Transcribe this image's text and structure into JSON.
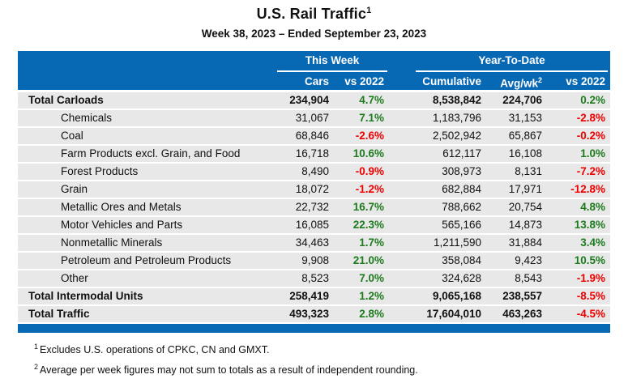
{
  "page": {
    "title": "U.S. Rail Traffic",
    "title_superscript": "1",
    "subtitle": "Week 38, 2023 – Ended September 23, 2023"
  },
  "colors": {
    "header_blue": "#0768B4",
    "row_gray": "#E8E8E8",
    "positive_green": "#1D7B1D",
    "negative_red": "#EE0000"
  },
  "chart_data": {
    "type": "table",
    "title": "U.S. Rail Traffic",
    "subtitle": "Week 38, 2023 – Ended September 23, 2023",
    "group_headers": [
      {
        "label": "This Week",
        "columns": [
          "Cars",
          "vs 2022"
        ]
      },
      {
        "label": "Year-To-Date",
        "columns": [
          "Cumulative",
          "Avg/wk",
          "vs 2022"
        ]
      }
    ],
    "avgwk_superscript": "2",
    "rows": [
      {
        "label": "Total Carloads",
        "total": true,
        "cars": "234,904",
        "week_vs_2022": "4.7%",
        "cumulative": "8,538,842",
        "avg_per_week": "224,706",
        "ytd_vs_2022": "0.2%"
      },
      {
        "label": "Chemicals",
        "total": false,
        "cars": "31,067",
        "week_vs_2022": "7.1%",
        "cumulative": "1,183,796",
        "avg_per_week": "31,153",
        "ytd_vs_2022": "-2.8%"
      },
      {
        "label": "Coal",
        "total": false,
        "cars": "68,846",
        "week_vs_2022": "-2.6%",
        "cumulative": "2,502,942",
        "avg_per_week": "65,867",
        "ytd_vs_2022": "-0.2%"
      },
      {
        "label": "Farm Products excl. Grain, and Food",
        "total": false,
        "cars": "16,718",
        "week_vs_2022": "10.6%",
        "cumulative": "612,117",
        "avg_per_week": "16,108",
        "ytd_vs_2022": "1.0%"
      },
      {
        "label": "Forest Products",
        "total": false,
        "cars": "8,490",
        "week_vs_2022": "-0.9%",
        "cumulative": "308,973",
        "avg_per_week": "8,131",
        "ytd_vs_2022": "-7.2%"
      },
      {
        "label": "Grain",
        "total": false,
        "cars": "18,072",
        "week_vs_2022": "-1.2%",
        "cumulative": "682,884",
        "avg_per_week": "17,971",
        "ytd_vs_2022": "-12.8%"
      },
      {
        "label": "Metallic Ores and Metals",
        "total": false,
        "cars": "22,732",
        "week_vs_2022": "16.7%",
        "cumulative": "788,662",
        "avg_per_week": "20,754",
        "ytd_vs_2022": "4.8%"
      },
      {
        "label": "Motor Vehicles and Parts",
        "total": false,
        "cars": "16,085",
        "week_vs_2022": "22.3%",
        "cumulative": "565,166",
        "avg_per_week": "14,873",
        "ytd_vs_2022": "13.8%"
      },
      {
        "label": "Nonmetallic Minerals",
        "total": false,
        "cars": "34,463",
        "week_vs_2022": "1.7%",
        "cumulative": "1,211,590",
        "avg_per_week": "31,884",
        "ytd_vs_2022": "3.4%"
      },
      {
        "label": "Petroleum and Petroleum Products",
        "total": false,
        "cars": "9,908",
        "week_vs_2022": "21.0%",
        "cumulative": "358,084",
        "avg_per_week": "9,423",
        "ytd_vs_2022": "10.5%"
      },
      {
        "label": "Other",
        "total": false,
        "cars": "8,523",
        "week_vs_2022": "7.0%",
        "cumulative": "324,628",
        "avg_per_week": "8,543",
        "ytd_vs_2022": "-1.9%"
      },
      {
        "label": "Total Intermodal Units",
        "total": true,
        "cars": "258,419",
        "week_vs_2022": "1.2%",
        "cumulative": "9,065,168",
        "avg_per_week": "238,557",
        "ytd_vs_2022": "-8.5%"
      },
      {
        "label": "Total Traffic",
        "total": true,
        "cars": "493,323",
        "week_vs_2022": "2.8%",
        "cumulative": "17,604,010",
        "avg_per_week": "463,263",
        "ytd_vs_2022": "-4.5%"
      }
    ]
  },
  "footnotes": [
    {
      "sup": "1",
      "text": "Excludes U.S. operations of CPKC, CN and GMXT."
    },
    {
      "sup": "2",
      "text": "Average per week figures may not sum to totals as a result of independent rounding."
    }
  ]
}
